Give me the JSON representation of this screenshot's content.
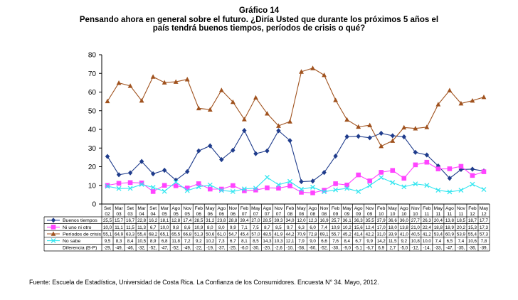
{
  "header": {
    "title": "Gráfico 14",
    "subtitle_line1": "Pensando ahora en general sobre el futuro.  ¿Diría Usted que durante los próximos 5 años el",
    "subtitle_line2": "país tendrá buenos tiempos, períodos de crisis o qué?"
  },
  "footer": {
    "source": "Fuente: Escuela de Estadística, Universidad de Costa Rica. La Confianza de los Consumidores. Encuesta N° 34. Mayo, 2012."
  },
  "chart_data": {
    "type": "line",
    "ylim": [
      0,
      80
    ],
    "yticks": [
      0,
      10,
      20,
      30,
      40,
      50,
      60,
      70,
      80
    ],
    "grid": false,
    "legend": "table-left",
    "categories_top": [
      "Set",
      "Mar",
      "Set",
      "Mar",
      "Set",
      "Mar",
      "Ago",
      "Nov",
      "Feb",
      "May",
      "Ago",
      "Nov",
      "Feb",
      "May",
      "Ago",
      "Nov",
      "Feb",
      "May",
      "Ago",
      "Nov",
      "Feb",
      "May",
      "Ago",
      "Nov",
      "Feb",
      "May",
      "Ago",
      "Nov",
      "Feb",
      "May",
      "Ago",
      "Nov",
      "Feb",
      "May"
    ],
    "categories_bottom": [
      "02",
      "03",
      "03",
      "04",
      "04",
      "05",
      "05",
      "05",
      "06",
      "06",
      "06",
      "06",
      "07",
      "07",
      "07",
      "07",
      "08",
      "08",
      "08",
      "08",
      "09",
      "09",
      "09",
      "09",
      "10",
      "10",
      "10",
      "10",
      "11",
      "11",
      "11",
      "11",
      "12",
      "12"
    ],
    "series": [
      {
        "name": "Buenos tiempos",
        "color": "#1f3c8c",
        "marker": "diamond",
        "values": [
          25.5,
          15.7,
          16.7,
          22.8,
          16.2,
          18.1,
          12.8,
          17.4,
          28.5,
          31.2,
          23.8,
          28.8,
          39.4,
          27.0,
          28.5,
          39.3,
          34.0,
          12.0,
          12.3,
          16.9,
          25.7,
          36.1,
          36.3,
          35.5,
          37.9,
          36.6,
          36.0,
          27.7,
          26.3,
          20.4,
          13.8,
          18.5,
          18.7,
          17.7
        ],
        "labels": [
          "25,5",
          "15,7",
          "16,7",
          "22,8",
          "16,2",
          "18,1",
          "12,8",
          "17,4",
          "28,5",
          "31,2",
          "23,8",
          "28,8",
          "39,4",
          "27,0",
          "28,5",
          "39,3",
          "34,0",
          "12,0",
          "12,3",
          "16,9",
          "25,7",
          "36,1",
          "36,3",
          "35,5",
          "37,9",
          "36,6",
          "36,0",
          "27,7",
          "26,3",
          "20,4",
          "13,8",
          "18,5",
          "18,7",
          "17,7"
        ]
      },
      {
        "name": "Ni uno ni otro",
        "color": "#ff44ff",
        "marker": "square",
        "values": [
          10.0,
          11.1,
          11.5,
          11.3,
          6.7,
          10.0,
          9.8,
          8.6,
          10.9,
          8.0,
          8.0,
          9.9,
          7.1,
          7.5,
          8.7,
          8.5,
          9.7,
          6.3,
          6.0,
          7.4,
          10.9,
          10.2,
          15.6,
          12.4,
          17.0,
          18.0,
          13.8,
          21.0,
          22.4,
          18.8,
          18.9,
          20.2,
          15.3,
          17.3
        ],
        "labels": [
          "10,0",
          "11,1",
          "11,5",
          "11,3",
          "6,7",
          "10,0",
          "9,8",
          "8,6",
          "10,9",
          "8,0",
          "8,0",
          "9,9",
          "7,1",
          "7,5",
          "8,7",
          "8,5",
          "9,7",
          "6,3",
          "6,0",
          "7,4",
          "10,9",
          "10,2",
          "15,6",
          "12,4",
          "17,0",
          "18,0",
          "13,8",
          "21,0",
          "22,4",
          "18,8",
          "18,9",
          "20,2",
          "15,3",
          "17,3"
        ]
      },
      {
        "name": "Períodos de crisis",
        "color": "#a0521e",
        "marker": "triangle",
        "values": [
          55.1,
          64.9,
          63.3,
          55.4,
          68.2,
          65.1,
          65.5,
          66.8,
          51.3,
          50.6,
          61.0,
          54.7,
          45.4,
          57.0,
          48.5,
          41.9,
          44.2,
          70.9,
          72.8,
          69.1,
          55.7,
          45.2,
          41.4,
          42.2,
          31.0,
          33.9,
          41.0,
          40.5,
          41.2,
          53.4,
          60.9,
          53.9,
          55.4,
          57.3
        ],
        "labels": [
          "55,1",
          "64,9",
          "63,3",
          "55,4",
          "68,2",
          "65,1",
          "65,5",
          "66,8",
          "51,3",
          "50,6",
          "61,0",
          "54,7",
          "45,4",
          "57,0",
          "48,5",
          "41,9",
          "44,2",
          "70,9",
          "72,8",
          "69,1",
          "55,7",
          "45,2",
          "41,4",
          "42,2",
          "31,0",
          "33,9",
          "41,0",
          "40,5",
          "41,2",
          "53,4",
          "60,9",
          "53,9",
          "55,4",
          "57,3"
        ]
      },
      {
        "name": "No sabe",
        "color": "#33e6f0",
        "marker": "x",
        "values": [
          9.5,
          8.3,
          8.4,
          10.5,
          8.9,
          6.8,
          11.8,
          7.2,
          9.2,
          10.2,
          7.3,
          6.7,
          8.1,
          8.5,
          14.3,
          10.3,
          12.1,
          7.9,
          9.0,
          6.6,
          7.6,
          8.4,
          6.7,
          9.9,
          14.2,
          11.5,
          9.2,
          10.8,
          10.0,
          7.4,
          6.5,
          7.4,
          10.6,
          7.8
        ],
        "labels": [
          "9,5",
          "8,3",
          "8,4",
          "10,5",
          "8,9",
          "6,8",
          "11,8",
          "7,2",
          "9,2",
          "10,2",
          "7,3",
          "6,7",
          "8,1",
          "8,5",
          "14,3",
          "10,3",
          "12,1",
          "7,9",
          "9,0",
          "6,6",
          "7,6",
          "8,4",
          "6,7",
          "9,9",
          "14,2",
          "11,5",
          "9,2",
          "10,8",
          "10,0",
          "7,4",
          "6,5",
          "7,4",
          "10,6",
          "7,8"
        ]
      }
    ],
    "extra_row": {
      "name": "Diferencia (B-P)",
      "labels": [
        "-29,",
        "-49,",
        "-46,",
        "-32,",
        "-52,",
        "-47,",
        "-52,",
        "-49,",
        "-22,",
        "-19,",
        "-37,",
        "-25,",
        "-6,0",
        "-30,",
        "-20,",
        "-2,6",
        "-10,",
        "-58,",
        "-60,",
        "-52,",
        "-30,",
        "-9,0",
        "-5,1",
        "-6,7",
        "6,9",
        "2,7",
        "-5,0",
        "-12,",
        "-14,",
        "-33,",
        "-47,",
        "-35,",
        "-36,",
        "-39,"
      ]
    }
  }
}
